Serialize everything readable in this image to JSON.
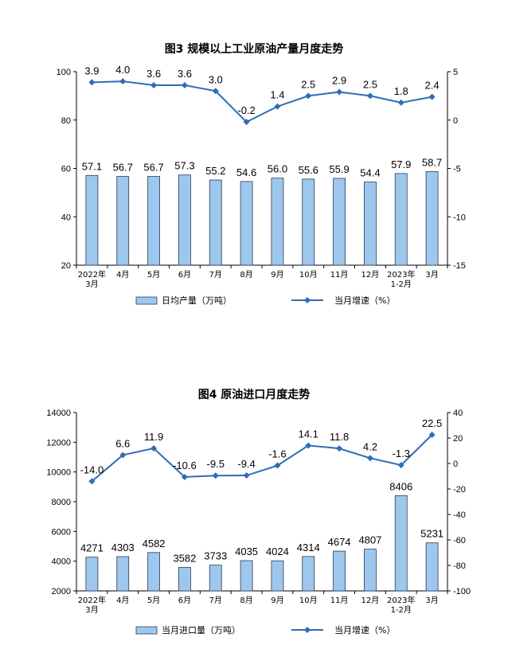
{
  "chart_data": [
    {
      "type": "bar+line",
      "title": "图3  规模以上工业原油产量月度走势",
      "categories": [
        "2022年\n3月",
        "4月",
        "5月",
        "6月",
        "7月",
        "8月",
        "9月",
        "10月",
        "11月",
        "12月",
        "2023年\n1-2月",
        "3月"
      ],
      "bar_series": {
        "name": "日均产量（万吨）",
        "values": [
          57.1,
          56.7,
          56.7,
          57.3,
          55.2,
          54.6,
          56.0,
          55.6,
          55.9,
          54.4,
          57.9,
          58.7
        ]
      },
      "line_series": {
        "name": "当月增速（%）",
        "values": [
          3.9,
          4.0,
          3.6,
          3.6,
          3.0,
          -0.2,
          1.4,
          2.5,
          2.9,
          2.5,
          1.8,
          2.4
        ]
      },
      "y_left": {
        "min": 20,
        "max": 100,
        "ticks": [
          20,
          40,
          60,
          80,
          100
        ]
      },
      "y_right": {
        "min": -15,
        "max": 5,
        "ticks": [
          -15,
          -10,
          -5,
          0,
          5
        ]
      },
      "legend_position": "bottom",
      "colors": {
        "bar": "#9ec7ee",
        "line": "#2e6db4"
      }
    },
    {
      "type": "bar+line",
      "title": "图4  原油进口月度走势",
      "categories": [
        "2022年\n3月",
        "4月",
        "5月",
        "6月",
        "7月",
        "8月",
        "9月",
        "10月",
        "11月",
        "12月",
        "2023年\n1-2月",
        "3月"
      ],
      "bar_series": {
        "name": "当月进口量（万吨）",
        "values": [
          4271,
          4303,
          4582,
          3582,
          3733,
          4035,
          4024,
          4314,
          4674,
          4807,
          8406,
          5231
        ]
      },
      "line_series": {
        "name": "当月增速（%）",
        "values": [
          -14.0,
          6.6,
          11.9,
          -10.6,
          -9.5,
          -9.4,
          -1.6,
          14.1,
          11.8,
          4.2,
          -1.3,
          22.5
        ]
      },
      "y_left": {
        "min": 2000,
        "max": 14000,
        "ticks": [
          2000,
          4000,
          6000,
          8000,
          10000,
          12000,
          14000
        ]
      },
      "y_right": {
        "min": -100,
        "max": 40,
        "ticks": [
          -100,
          -80,
          -60,
          -40,
          -20,
          0,
          20,
          40
        ]
      },
      "legend_position": "bottom",
      "colors": {
        "bar": "#9ec7ee",
        "line": "#2e6db4"
      }
    }
  ]
}
